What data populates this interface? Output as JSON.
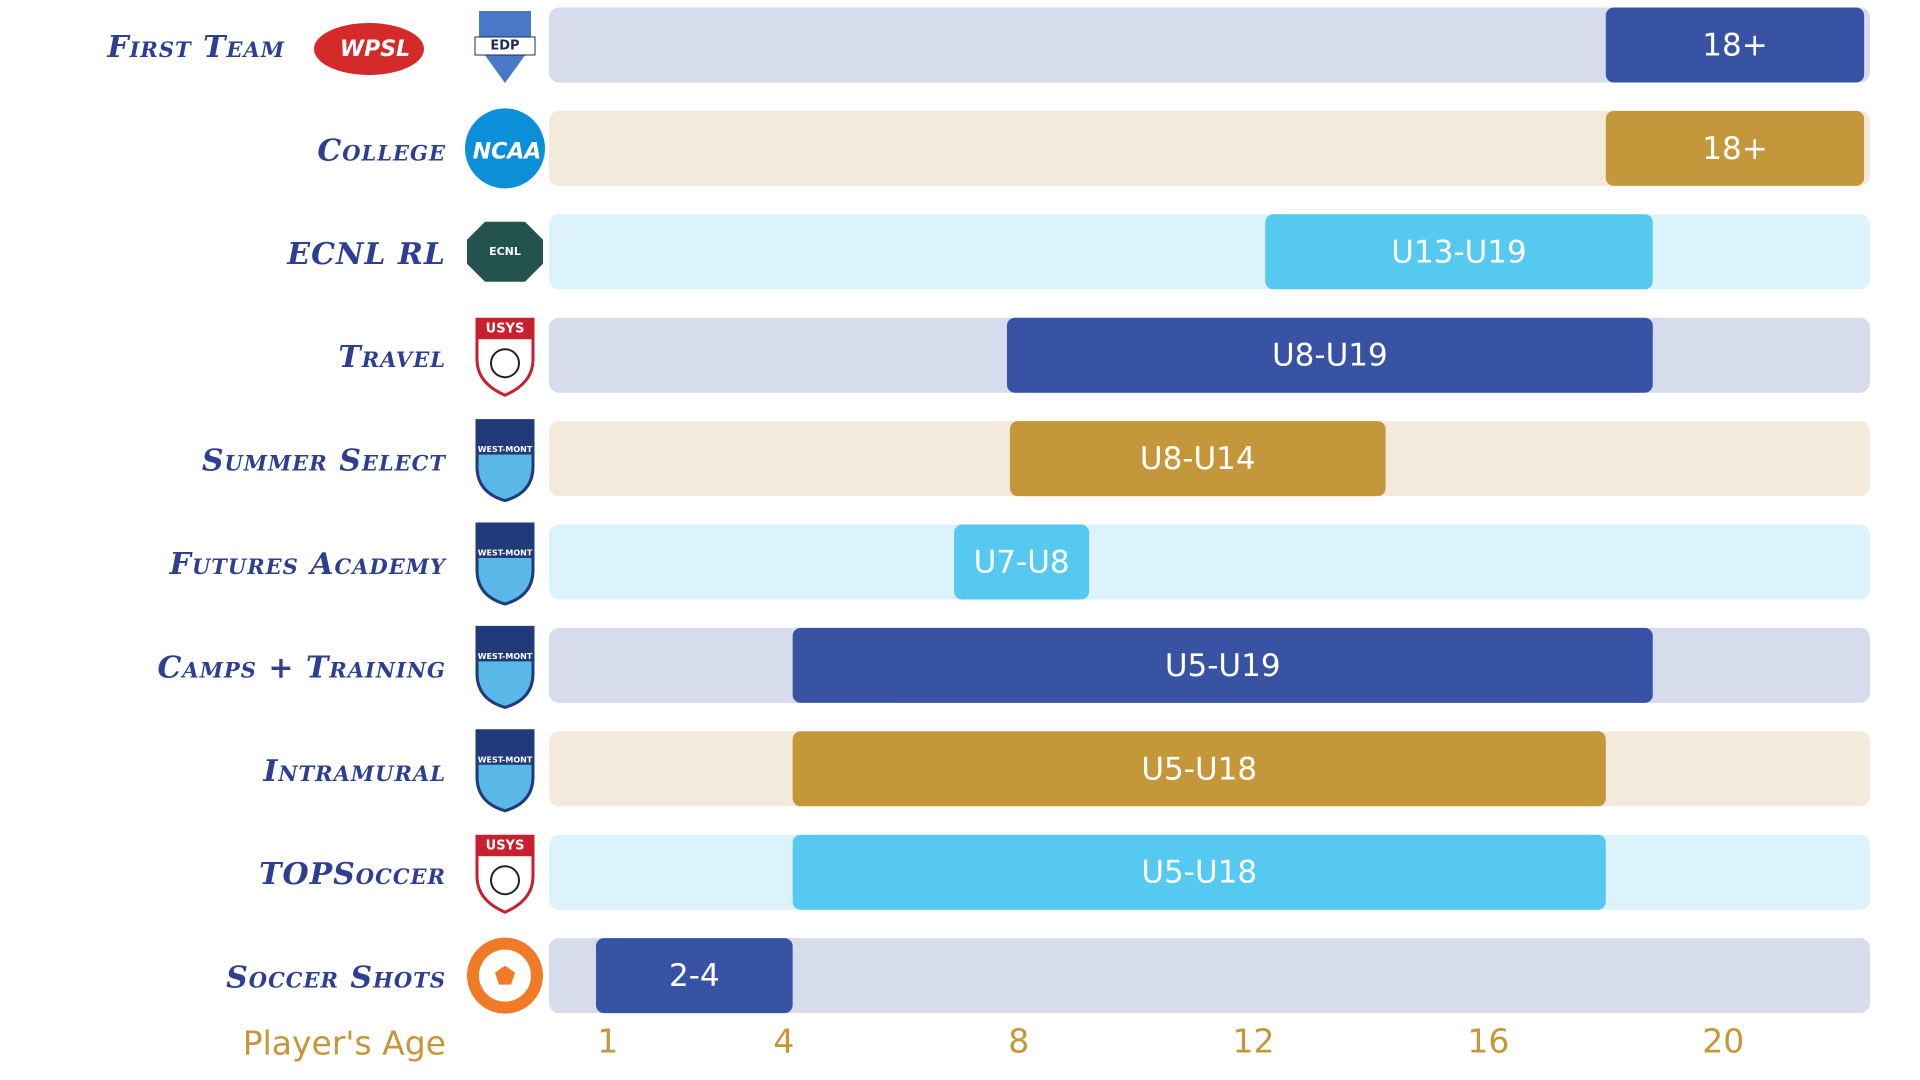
{
  "chart_data": {
    "type": "range",
    "categories": [
      "First Team",
      "College",
      "ECNL RL",
      "Travel",
      "Summer Select",
      "Futures Academy",
      "Camps + Training",
      "Intramural",
      "TOPSoccer",
      "Soccer Shots"
    ],
    "logos": [
      [
        "WPSL",
        "EDP"
      ],
      [
        "NCAA"
      ],
      [
        "ECNL"
      ],
      [
        "USYS"
      ],
      [
        "WEST-MONT"
      ],
      [
        "WEST-MONT"
      ],
      [
        "WEST-MONT"
      ],
      [
        "WEST-MONT"
      ],
      [
        "USYS"
      ],
      []
    ],
    "start": [
      18.0,
      18.0,
      12.2,
      7.8,
      7.85,
      6.9,
      4.15,
      4.15,
      4.15,
      0.8
    ],
    "end": [
      22.4,
      22.4,
      18.8,
      18.8,
      14.25,
      9.2,
      18.8,
      18.0,
      18.0,
      4.15
    ],
    "value_labels": [
      "18+",
      "18+",
      "U13-U19",
      "U8-U19",
      "U8-U14",
      "U7-U8",
      "U5-U19",
      "U5-U18",
      "U5-U18",
      "2-4"
    ],
    "colors": [
      "#3953a4",
      "#c4973b",
      "#56c9f0",
      "#3953a4",
      "#c4973b",
      "#56c9f0",
      "#3953a4",
      "#c4973b",
      "#56c9f0",
      "#3953a4"
    ],
    "track_colors": [
      "#d7dcec",
      "#f3eadb",
      "#dcf3fb",
      "#d7dcec",
      "#f3eadb",
      "#dcf3fb",
      "#d7dcec",
      "#f3eadb",
      "#dcf3fb",
      "#d7dcec"
    ],
    "xlabel": "Player's Age",
    "xlim": [
      0,
      22.5
    ],
    "xticks": [
      1,
      4,
      8,
      12,
      16,
      20
    ]
  }
}
